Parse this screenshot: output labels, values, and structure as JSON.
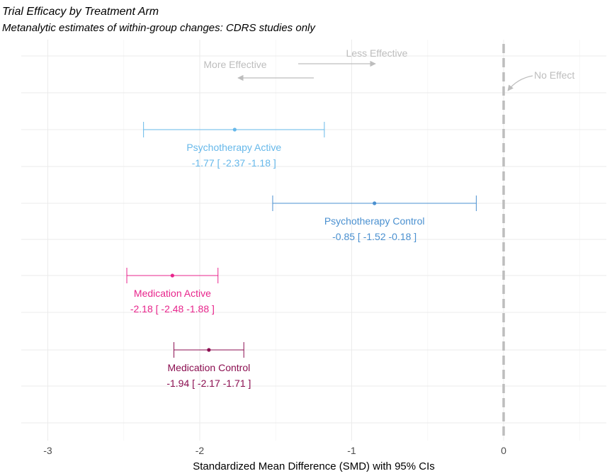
{
  "chart_data": {
    "type": "forest",
    "title": "Trial Efficacy by Treatment Arm",
    "subtitle": "Metanalytic estimates of within-group changes: CDRS studies only",
    "xlabel": "Standardized Mean Difference (SMD) with 95% CIs",
    "xlim": [
      -3.18,
      0.67
    ],
    "xticks": [
      -3,
      -2,
      -1,
      0
    ],
    "xtick_labels": [
      "-3",
      "-2",
      "-1",
      "0"
    ],
    "grid": true,
    "reference_line": {
      "x": 0,
      "label": "No Effect",
      "color": "#bdbdbd"
    },
    "annotations": {
      "more_effective": "More Effective",
      "less_effective": "Less Effective"
    },
    "series": [
      {
        "name": "Psychotherapy Active",
        "estimate": -1.77,
        "lower": -2.37,
        "upper": -1.18,
        "ci_text": "-1.77 [ -2.37 -1.18 ]",
        "color": "#66b8ea"
      },
      {
        "name": "Psychotherapy Control",
        "estimate": -0.85,
        "lower": -1.52,
        "upper": -0.18,
        "ci_text": "-0.85 [ -1.52 -0.18 ]",
        "color": "#4a90d0"
      },
      {
        "name": "Medication Active",
        "estimate": -2.18,
        "lower": -2.48,
        "upper": -1.88,
        "ci_text": "-2.18 [ -2.48 -1.88 ]",
        "color": "#e8258c"
      },
      {
        "name": "Medication Control",
        "estimate": -1.94,
        "lower": -2.17,
        "upper": -1.71,
        "ci_text": "-1.94 [ -2.17 -1.71 ]",
        "color": "#8b0e50"
      }
    ]
  }
}
